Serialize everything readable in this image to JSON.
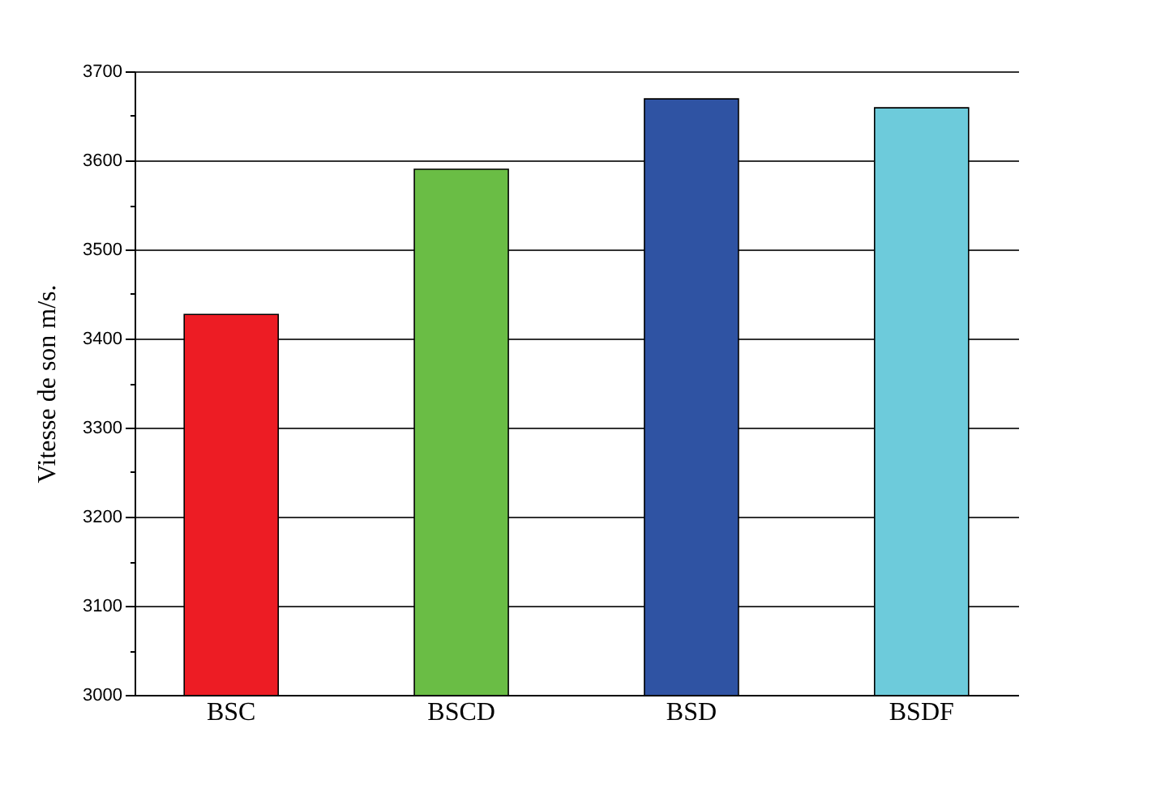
{
  "chart_data": {
    "type": "bar",
    "ylabel": "Vitesse de son m/s.",
    "categories": [
      "BSC",
      "BSCD",
      "BSD",
      "BSDF"
    ],
    "values": [
      3427,
      3590,
      3669,
      3659
    ],
    "colors": [
      "#ed1c24",
      "#6abd45",
      "#2f53a3",
      "#6dcbdb"
    ],
    "ylim": [
      3000,
      3700
    ],
    "yticks": [
      3000,
      {
        "value": 3050,
        "label": null
      },
      3100,
      {
        "value": 3150,
        "label": null
      },
      3200,
      {
        "value": 3250,
        "label": null
      },
      3300,
      {
        "value": 3350,
        "label": null
      },
      3400,
      {
        "value": 3450,
        "label": null
      },
      3500,
      {
        "value": 3550,
        "label": null
      },
      3600,
      {
        "value": 3650,
        "label": null
      },
      3700
    ],
    "grid": "y"
  }
}
